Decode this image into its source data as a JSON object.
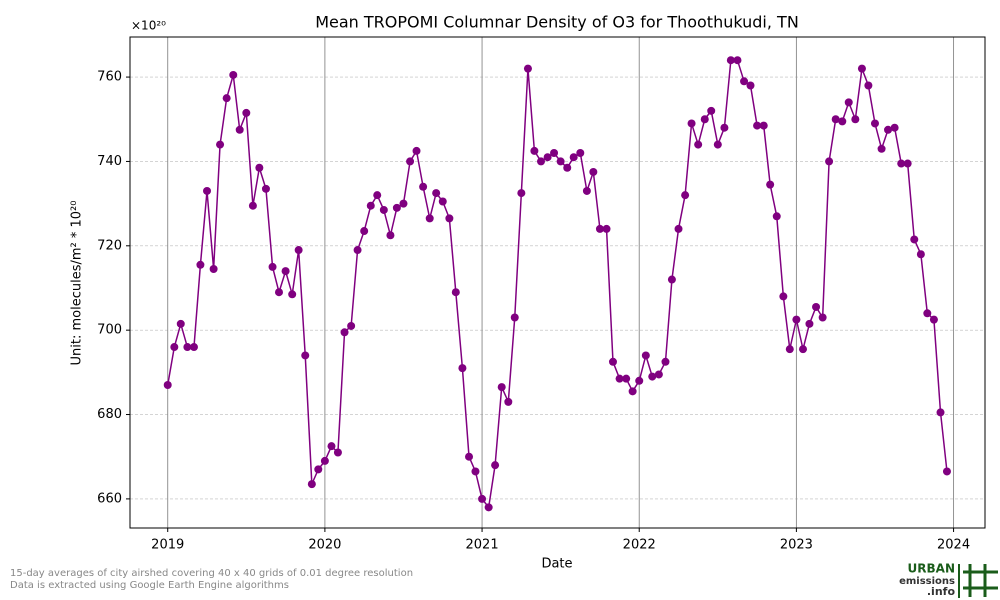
{
  "chart_data": {
    "type": "line",
    "title": "Mean TROPOMI Columnar Density of O3 for Thoothukudi, TN",
    "xlabel": "Date",
    "ylabel": "Unit: molecules/m² * 10²⁰",
    "offset_text": "×10²⁰",
    "notes": [
      "15-day averages of city airshed covering 40 x 40 grids of 0.01 degree resolution",
      "Data is extracted using Google Earth Engine algorithms"
    ],
    "logo": [
      "URBAN",
      "emissions",
      ".info"
    ],
    "x": [
      2019,
      2019.042,
      2019.083,
      2019.125,
      2019.167,
      2019.208,
      2019.25,
      2019.292,
      2019.333,
      2019.375,
      2019.417,
      2019.458,
      2019.5,
      2019.542,
      2019.583,
      2019.625,
      2019.667,
      2019.708,
      2019.75,
      2019.792,
      2019.833,
      2019.875,
      2019.917,
      2019.958,
      2020,
      2020.042,
      2020.083,
      2020.125,
      2020.167,
      2020.208,
      2020.25,
      2020.292,
      2020.333,
      2020.375,
      2020.417,
      2020.458,
      2020.5,
      2020.542,
      2020.583,
      2020.625,
      2020.667,
      2020.708,
      2020.75,
      2020.792,
      2020.833,
      2020.875,
      2020.917,
      2020.958,
      2021,
      2021.042,
      2021.083,
      2021.125,
      2021.167,
      2021.208,
      2021.25,
      2021.292,
      2021.333,
      2021.375,
      2021.417,
      2021.458,
      2021.5,
      2021.542,
      2021.583,
      2021.625,
      2021.667,
      2021.708,
      2021.75,
      2021.792,
      2021.833,
      2021.875,
      2021.917,
      2021.958,
      2022,
      2022.042,
      2022.083,
      2022.125,
      2022.167,
      2022.208,
      2022.25,
      2022.292,
      2022.333,
      2022.375,
      2022.417,
      2022.458,
      2022.5,
      2022.542,
      2022.583,
      2022.625,
      2022.667,
      2022.708,
      2022.75,
      2022.792,
      2022.833,
      2022.875,
      2022.917,
      2022.958,
      2023,
      2023.042,
      2023.083,
      2023.125,
      2023.167,
      2023.208,
      2023.25,
      2023.292,
      2023.333,
      2023.375,
      2023.417,
      2023.458,
      2023.5,
      2023.542,
      2023.583,
      2023.625,
      2023.667,
      2023.708,
      2023.75,
      2023.792,
      2023.833,
      2023.875,
      2023.917,
      2023.958
    ],
    "series": [
      {
        "color": "#800080",
        "values": [
          687,
          696,
          701.5,
          696,
          696,
          715.5,
          733,
          714.5,
          744,
          755,
          760.5,
          747.5,
          751.5,
          729.5,
          738.5,
          733.5,
          715,
          709,
          714,
          708.5,
          719,
          694,
          663.5,
          667,
          669,
          672.5,
          671,
          699.5,
          701,
          719,
          723.5,
          729.5,
          732,
          728.5,
          722.5,
          729,
          730,
          740,
          742.5,
          734,
          726.5,
          732.5,
          730.5,
          726.5,
          709,
          691,
          670,
          666.5,
          660,
          658,
          668,
          686.5,
          683,
          703,
          732.5,
          762,
          742.5,
          740,
          741,
          742,
          740,
          738.5,
          741,
          742,
          733,
          737.5,
          724,
          724,
          692.5,
          688.5,
          688.5,
          685.5,
          688,
          694,
          689,
          689.5,
          692.5,
          712,
          724,
          732,
          749,
          744,
          750,
          752,
          744,
          748,
          764,
          764,
          759,
          758,
          748.5,
          748.5,
          734.5,
          727,
          708,
          695.5,
          702.5,
          695.5,
          701.5,
          705.5,
          703,
          740,
          750,
          749.5,
          754,
          750,
          762,
          758,
          749,
          743,
          747.5,
          748,
          739.5,
          739.5,
          721.5,
          718,
          704,
          702.5,
          680.5,
          666.5
        ]
      }
    ],
    "xlim": [
      2018.76,
      2024.2
    ],
    "xticks": [
      2019,
      2020,
      2021,
      2022,
      2023,
      2024
    ],
    "ylim": [
      653.1,
      769.5
    ],
    "yticks": [
      660,
      680,
      700,
      720,
      740,
      760
    ],
    "grid": true
  }
}
